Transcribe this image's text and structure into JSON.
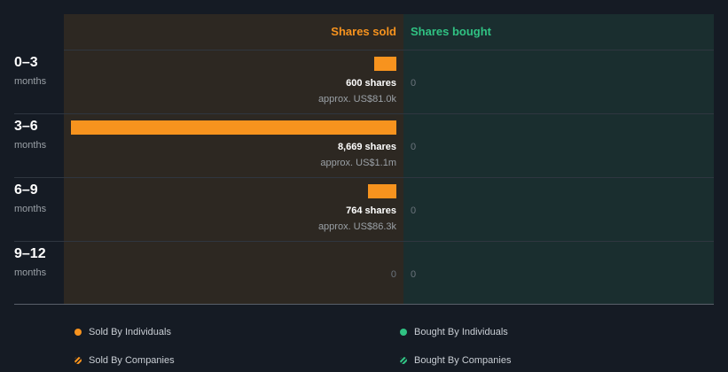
{
  "chart_data": {
    "type": "bar",
    "orientation": "horizontal",
    "columns": {
      "sold": "Shares sold",
      "bought": "Shares bought"
    },
    "categories": [
      {
        "period": "0–3",
        "unit": "months"
      },
      {
        "period": "3–6",
        "unit": "months"
      },
      {
        "period": "6–9",
        "unit": "months"
      },
      {
        "period": "9–12",
        "unit": "months"
      }
    ],
    "series": [
      {
        "name": "Shares sold",
        "values": [
          600,
          8669,
          764,
          0
        ],
        "labels": [
          "600 shares",
          "8,669 shares",
          "764 shares",
          "0"
        ],
        "approx": [
          "approx. US$81.0k",
          "approx. US$1.1m",
          "approx. US$86.3k",
          ""
        ]
      },
      {
        "name": "Shares bought",
        "values": [
          0,
          0,
          0,
          0
        ],
        "labels": [
          "0",
          "0",
          "0",
          "0"
        ]
      }
    ],
    "xlim": [
      0,
      8669
    ],
    "colors": {
      "sold": "#f7931e",
      "bought": "#30c283"
    },
    "legend": [
      {
        "label": "Sold By Individuals",
        "color": "#f7931e",
        "style": "solid"
      },
      {
        "label": "Bought By Individuals",
        "color": "#30c283",
        "style": "solid"
      },
      {
        "label": "Sold By Companies",
        "color": "#f7931e",
        "style": "hatched"
      },
      {
        "label": "Bought By Companies",
        "color": "#30c283",
        "style": "hatched"
      }
    ]
  }
}
